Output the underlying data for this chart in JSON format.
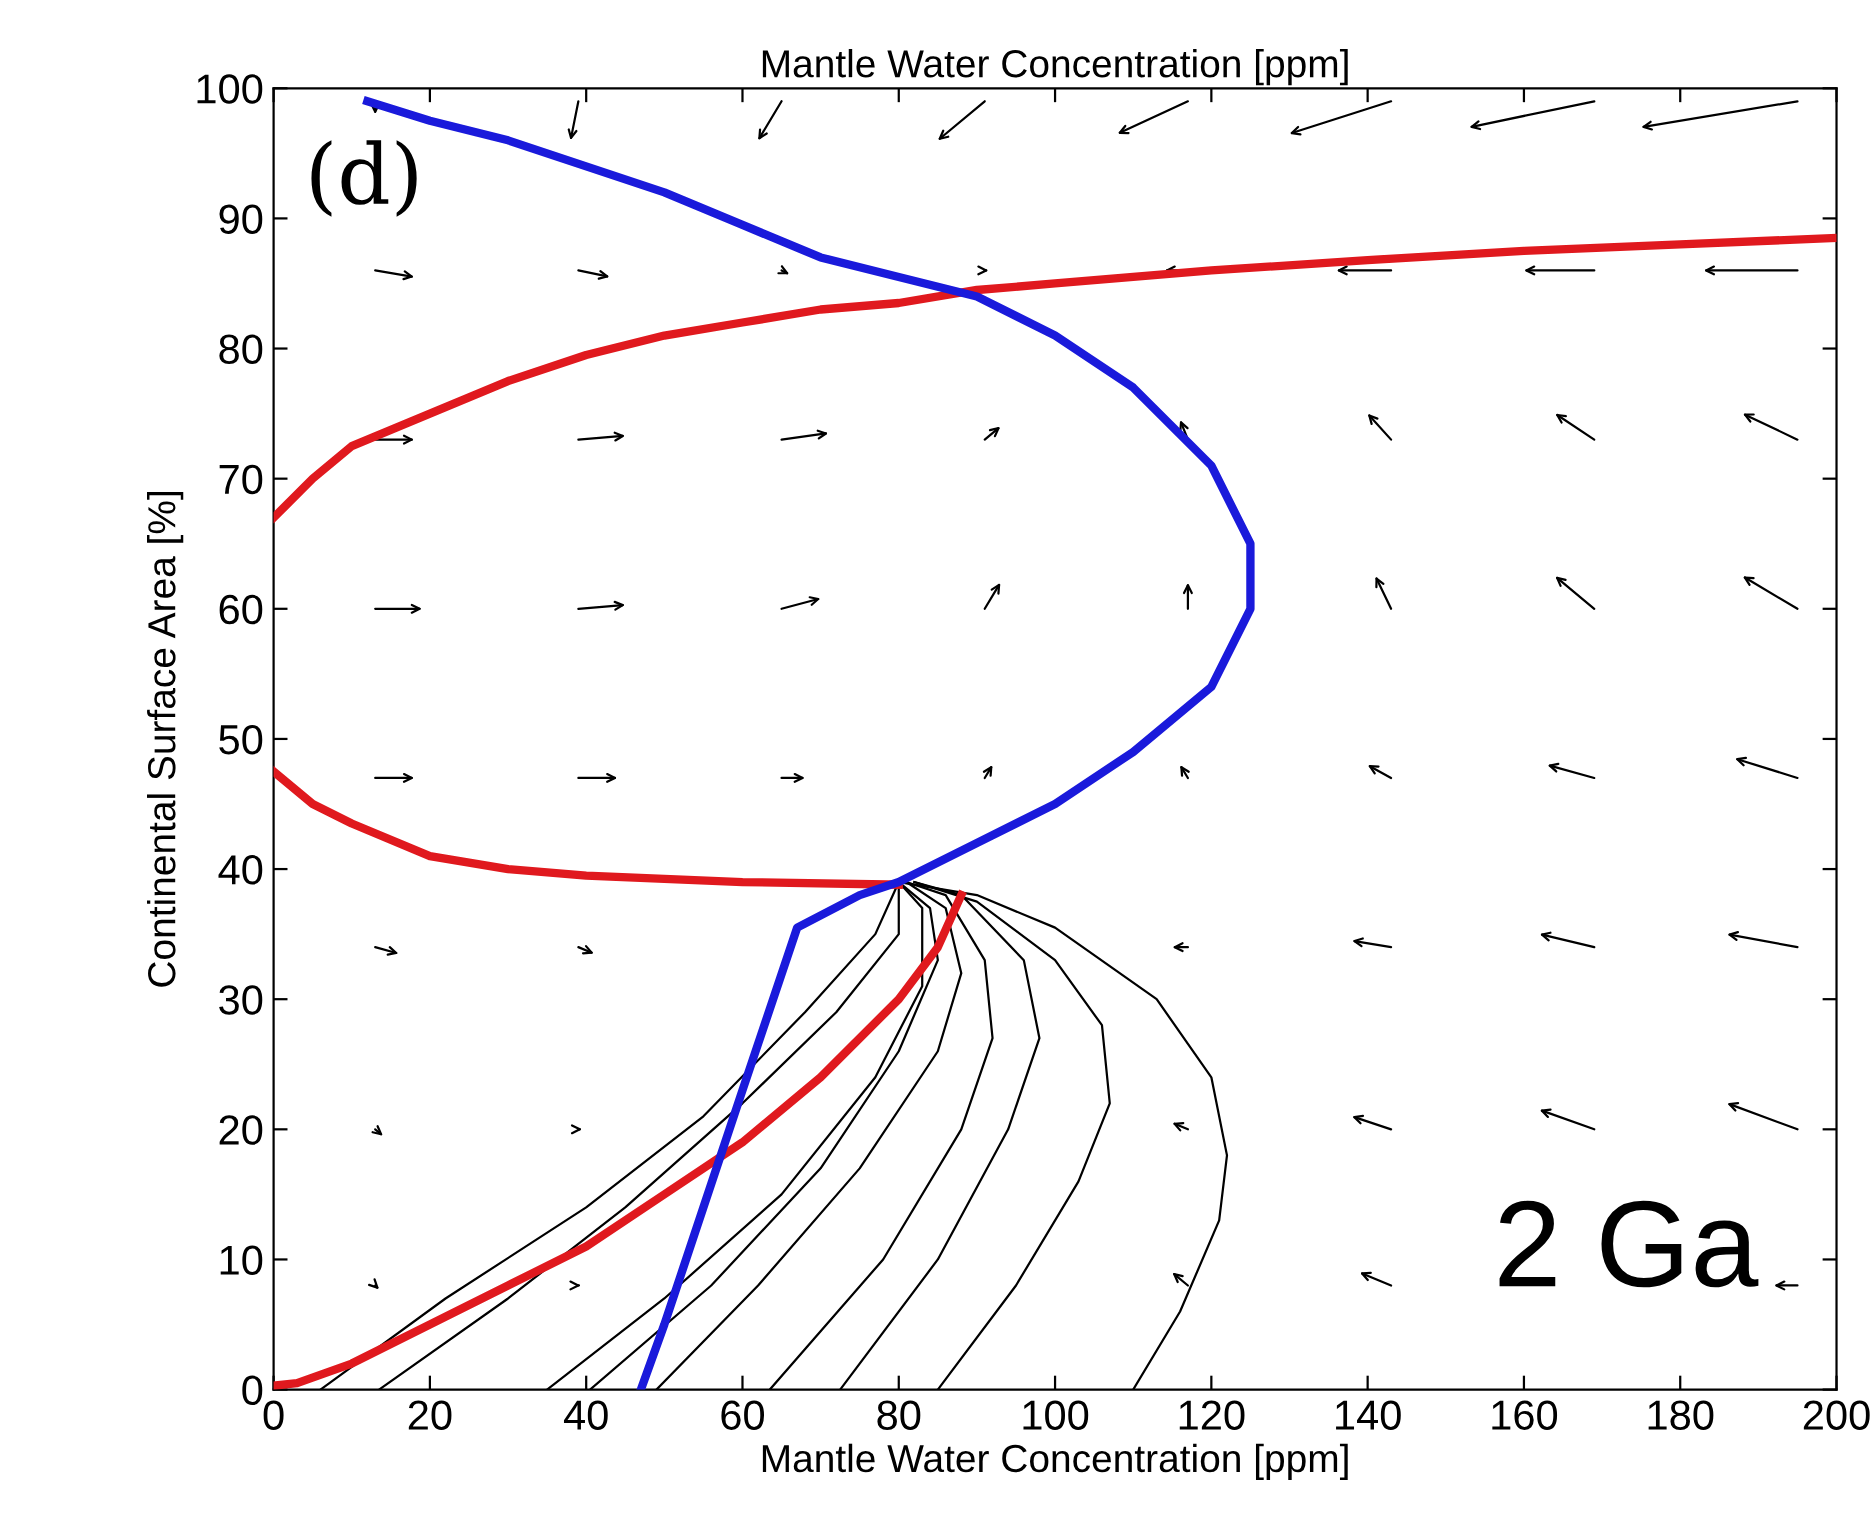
{
  "chart_data": {
    "type": "line",
    "title": "Mantle Water Concentration [ppm]",
    "xlabel": "Mantle Water Concentration [ppm]",
    "ylabel": "Continental Surface Area [%]",
    "annotations": [
      "(d)",
      "2 Ga"
    ],
    "xlim": [
      0,
      200
    ],
    "ylim": [
      0,
      100
    ],
    "xticks": [
      0,
      20,
      40,
      60,
      80,
      100,
      120,
      140,
      160,
      180,
      200
    ],
    "yticks": [
      0,
      10,
      20,
      30,
      40,
      50,
      60,
      70,
      80,
      90,
      100
    ],
    "grid": false,
    "legend": false,
    "marker": "none",
    "line_style": "solid",
    "series": [
      {
        "color": "#000000",
        "x": [
          110,
          116,
          121,
          122,
          120,
          113,
          100,
          90,
          80
        ],
        "values": [
          0,
          6,
          13,
          18,
          24,
          30,
          35.5,
          38,
          39
        ]
      },
      {
        "color": "#000000",
        "x": [
          85,
          95,
          103,
          107,
          106,
          100,
          90,
          82
        ],
        "values": [
          0,
          8,
          16,
          22,
          28,
          33,
          37.5,
          39
        ]
      },
      {
        "color": "#000000",
        "x": [
          72.5,
          85,
          94,
          98,
          96,
          88,
          82
        ],
        "values": [
          0,
          10,
          20,
          27,
          33,
          38,
          39
        ]
      },
      {
        "color": "#000000",
        "x": [
          63.5,
          78,
          88,
          92,
          91,
          86,
          81
        ],
        "values": [
          0,
          10,
          20,
          27,
          33,
          38,
          39
        ]
      },
      {
        "color": "#000000",
        "x": [
          49,
          62,
          75,
          85,
          88,
          86,
          81
        ],
        "values": [
          0,
          8,
          17,
          26,
          32,
          37,
          39
        ]
      },
      {
        "color": "#000000",
        "x": [
          40.5,
          56,
          70,
          80,
          85,
          84,
          80
        ],
        "values": [
          0,
          8,
          17,
          26,
          33,
          37,
          39
        ]
      },
      {
        "color": "#000000",
        "x": [
          35,
          50,
          65,
          77,
          83,
          83,
          80
        ],
        "values": [
          0,
          7,
          15,
          24,
          31,
          37,
          39
        ]
      },
      {
        "color": "#000000",
        "x": [
          13.5,
          30,
          45,
          60,
          72,
          80,
          80
        ],
        "values": [
          0,
          7,
          14,
          22,
          29,
          35,
          39
        ]
      },
      {
        "color": "#000000",
        "x": [
          6,
          22,
          40,
          55,
          68,
          77,
          80
        ],
        "values": [
          0,
          7,
          14,
          21,
          29,
          35,
          39
        ]
      },
      {
        "color": "#e0191e",
        "x": [
          0,
          5,
          10,
          20,
          30,
          40,
          50,
          60,
          70,
          80,
          90,
          100,
          120,
          140,
          160,
          180,
          200
        ],
        "values": [
          67,
          70,
          72.5,
          75,
          77.5,
          79.5,
          81,
          82,
          83,
          83.5,
          84.5,
          85,
          86,
          86.8,
          87.5,
          88,
          88.5
        ]
      },
      {
        "color": "#e0191e",
        "x": [
          0,
          5,
          10,
          20,
          30,
          40,
          60,
          80
        ],
        "values": [
          47.5,
          45,
          43.5,
          41,
          40,
          39.5,
          39,
          38.8
        ]
      },
      {
        "color": "#e0191e",
        "x": [
          88,
          85,
          80,
          70,
          60,
          50,
          40,
          30,
          20,
          10,
          3,
          0
        ],
        "values": [
          38,
          34,
          30,
          24,
          19,
          15,
          11,
          8,
          5,
          2,
          0.5,
          0.3
        ]
      },
      {
        "color": "#1a1adb",
        "x": [
          12,
          20,
          30,
          40,
          50,
          60,
          70,
          80,
          90,
          100,
          110,
          120,
          125,
          125,
          120,
          110,
          100,
          90,
          80,
          75,
          67,
          60,
          55,
          50,
          47
        ],
        "values": [
          99,
          97.5,
          96,
          94,
          92,
          89.5,
          87,
          85.5,
          84,
          81,
          77,
          71,
          65,
          60,
          54,
          49,
          45,
          42,
          39,
          38,
          35.5,
          23,
          14,
          5,
          0
        ]
      }
    ]
  }
}
